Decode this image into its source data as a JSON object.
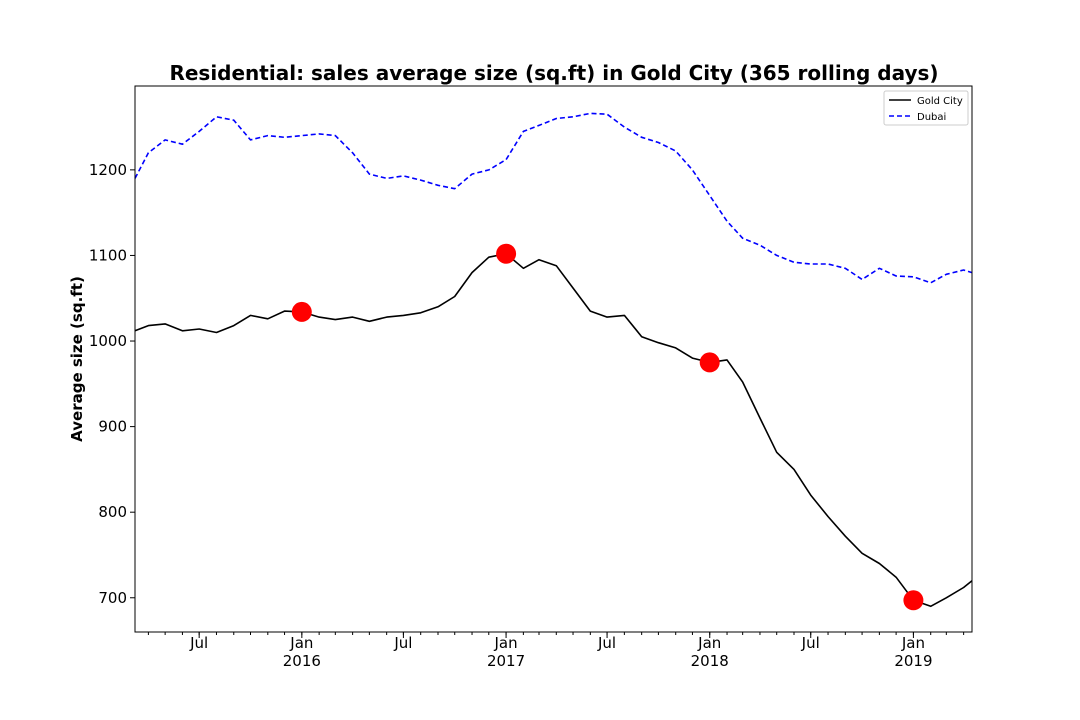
{
  "chart_data": {
    "type": "line",
    "title": "Residential: sales average size (sq.ft) in Gold City (365 rolling days)",
    "xlabel": "",
    "ylabel": "Average size (sq.ft)",
    "xlim": [
      "2015-03-08",
      "2019-04-16"
    ],
    "ylim": [
      660,
      1298
    ],
    "y_ticks": [
      700,
      800,
      900,
      1000,
      1100,
      1200
    ],
    "x_ticks": [
      {
        "date": "2015-07-01",
        "label": "Jul",
        "sublabel": ""
      },
      {
        "date": "2016-01-01",
        "label": "Jan",
        "sublabel": "2016"
      },
      {
        "date": "2016-07-01",
        "label": "Jul",
        "sublabel": ""
      },
      {
        "date": "2017-01-01",
        "label": "Jan",
        "sublabel": "2017"
      },
      {
        "date": "2017-07-01",
        "label": "Jul",
        "sublabel": ""
      },
      {
        "date": "2018-01-01",
        "label": "Jan",
        "sublabel": "2018"
      },
      {
        "date": "2018-07-01",
        "label": "Jul",
        "sublabel": ""
      },
      {
        "date": "2019-01-01",
        "label": "Jan",
        "sublabel": "2019"
      }
    ],
    "grid": false,
    "legend_position": "top-right",
    "series": [
      {
        "name": "Gold City",
        "color": "#000000",
        "style": "solid",
        "x": [
          "2015-03-08",
          "2015-04-01",
          "2015-05-01",
          "2015-06-01",
          "2015-07-01",
          "2015-08-01",
          "2015-09-01",
          "2015-10-01",
          "2015-11-01",
          "2015-12-01",
          "2016-01-01",
          "2016-02-01",
          "2016-03-01",
          "2016-04-01",
          "2016-05-01",
          "2016-06-01",
          "2016-07-01",
          "2016-08-01",
          "2016-09-01",
          "2016-10-01",
          "2016-11-01",
          "2016-12-01",
          "2017-01-01",
          "2017-02-01",
          "2017-03-01",
          "2017-04-01",
          "2017-05-01",
          "2017-06-01",
          "2017-07-01",
          "2017-08-01",
          "2017-09-01",
          "2017-10-01",
          "2017-11-01",
          "2017-12-01",
          "2018-01-01",
          "2018-02-01",
          "2018-03-01",
          "2018-04-01",
          "2018-05-01",
          "2018-06-01",
          "2018-07-01",
          "2018-08-01",
          "2018-09-01",
          "2018-10-01",
          "2018-11-01",
          "2018-12-01",
          "2019-01-01",
          "2019-02-01",
          "2019-03-01",
          "2019-04-01",
          "2019-04-16"
        ],
        "values": [
          1012,
          1018,
          1020,
          1012,
          1014,
          1010,
          1018,
          1030,
          1026,
          1035,
          1034,
          1028,
          1025,
          1028,
          1023,
          1028,
          1030,
          1033,
          1040,
          1052,
          1080,
          1098,
          1102,
          1085,
          1095,
          1088,
          1062,
          1035,
          1028,
          1030,
          1005,
          998,
          992,
          980,
          975,
          978,
          952,
          910,
          870,
          850,
          820,
          795,
          772,
          752,
          740,
          724,
          697,
          690,
          700,
          712,
          720
        ]
      },
      {
        "name": "Dubai",
        "color": "#0000ff",
        "style": "dashed",
        "x": [
          "2015-03-08",
          "2015-04-01",
          "2015-05-01",
          "2015-06-01",
          "2015-07-01",
          "2015-08-01",
          "2015-09-01",
          "2015-10-01",
          "2015-11-01",
          "2015-12-01",
          "2016-01-01",
          "2016-02-01",
          "2016-03-01",
          "2016-04-01",
          "2016-05-01",
          "2016-06-01",
          "2016-07-01",
          "2016-08-01",
          "2016-09-01",
          "2016-10-01",
          "2016-11-01",
          "2016-12-01",
          "2017-01-01",
          "2017-02-01",
          "2017-03-01",
          "2017-04-01",
          "2017-05-01",
          "2017-06-01",
          "2017-07-01",
          "2017-08-01",
          "2017-09-01",
          "2017-10-01",
          "2017-11-01",
          "2017-12-01",
          "2018-01-01",
          "2018-02-01",
          "2018-03-01",
          "2018-04-01",
          "2018-05-01",
          "2018-06-01",
          "2018-07-01",
          "2018-08-01",
          "2018-09-01",
          "2018-10-01",
          "2018-11-01",
          "2018-12-01",
          "2019-01-01",
          "2019-02-01",
          "2019-03-01",
          "2019-04-01",
          "2019-04-16"
        ],
        "values": [
          1190,
          1220,
          1235,
          1230,
          1245,
          1262,
          1258,
          1235,
          1240,
          1238,
          1240,
          1242,
          1240,
          1220,
          1195,
          1190,
          1193,
          1188,
          1182,
          1178,
          1195,
          1200,
          1212,
          1245,
          1252,
          1260,
          1262,
          1266,
          1265,
          1250,
          1238,
          1232,
          1222,
          1200,
          1170,
          1140,
          1120,
          1112,
          1100,
          1092,
          1090,
          1090,
          1085,
          1072,
          1085,
          1076,
          1075,
          1068,
          1078,
          1083,
          1080
        ]
      }
    ],
    "markers": {
      "color": "#ff0000",
      "points": [
        {
          "date": "2016-01-01",
          "value": 1034
        },
        {
          "date": "2017-01-01",
          "value": 1102
        },
        {
          "date": "2018-01-01",
          "value": 975
        },
        {
          "date": "2019-01-01",
          "value": 697
        }
      ]
    }
  }
}
